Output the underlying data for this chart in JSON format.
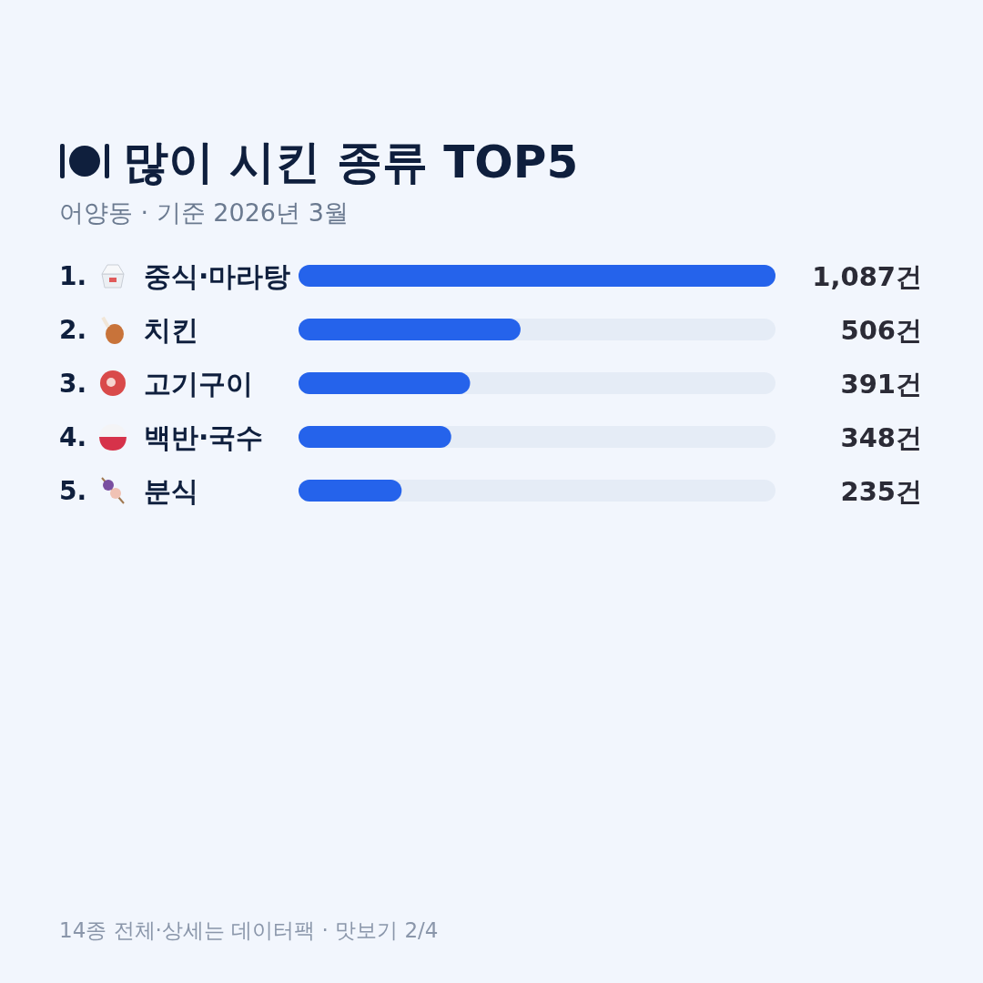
{
  "chart_data": {
    "type": "bar",
    "orientation": "horizontal",
    "title": "많이 시킨 종류 TOP5",
    "subtitle": "어양동 · 기준 2026년 3월",
    "categories": [
      "1. 중식·마라탕",
      "2. 치킨",
      "3. 고기구이",
      "4. 백반·국수",
      "5. 분식"
    ],
    "values": [
      1087,
      506,
      391,
      348,
      235
    ],
    "value_labels": [
      "1,087건",
      "506건",
      "391건",
      "348건",
      "235건"
    ],
    "color": "#2563eb",
    "annotations": [
      "14종 전체·상세는 데이터팩 · 맛보기 2/4"
    ]
  }
}
